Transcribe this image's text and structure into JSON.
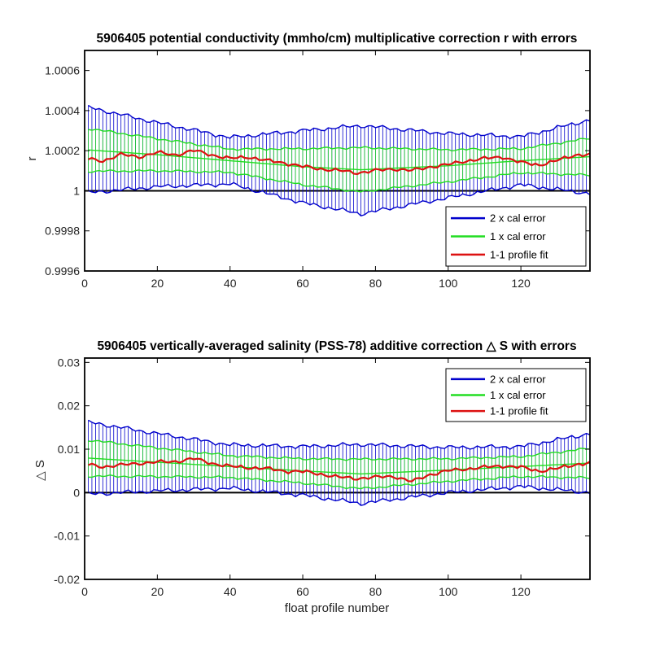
{
  "chart_data": [
    {
      "type": "line",
      "title": "5906405 potential conductivity (mmho/cm) multiplicative correction r with errors",
      "xlabel": "",
      "ylabel": "r",
      "xlim": [
        0,
        139
      ],
      "ylim": [
        0.9996,
        1.0007
      ],
      "xticks": [
        0,
        20,
        40,
        60,
        80,
        100,
        120
      ],
      "xtick_labels": [
        "0",
        "20",
        "40",
        "60",
        "80",
        "100",
        "120"
      ],
      "yticks": [
        0.9996,
        0.9998,
        1.0,
        1.0002,
        1.0004,
        1.0006
      ],
      "ytick_labels": [
        "0.9996",
        "0.9998",
        "1",
        "1.0002",
        "1.0004",
        "1.0006"
      ],
      "reference_line": 1.0,
      "legend_position": "lower-right",
      "center": {
        "x": [
          0,
          20,
          40,
          60,
          76,
          100,
          120,
          139
        ],
        "y": [
          1.000205,
          1.00018,
          1.00015,
          1.00012,
          1.000105,
          1.000125,
          1.00015,
          1.00017
        ]
      },
      "error_1x": {
        "x": [
          0,
          20,
          40,
          60,
          76,
          100,
          120,
          139
        ],
        "y": [
          0.000108,
          8e-05,
          5.8e-05,
          9e-05,
          0.00011,
          8e-05,
          6e-05,
          9.2e-05
        ]
      },
      "series": [
        {
          "name": "2 x cal error",
          "color": "#0000cc"
        },
        {
          "name": "1 x cal error",
          "color": "#22dd22"
        },
        {
          "name": "1-1 profile fit",
          "color": "#dd1111",
          "x": [
            0,
            5,
            10,
            15,
            20,
            25,
            30,
            35,
            40,
            45,
            50,
            55,
            60,
            65,
            70,
            75,
            80,
            85,
            90,
            95,
            100,
            105,
            110,
            115,
            120,
            125,
            130,
            135,
            139
          ],
          "y": [
            1.00016,
            1.00015,
            1.00018,
            1.00017,
            1.00019,
            1.00018,
            1.0002,
            1.00018,
            1.00016,
            1.00017,
            1.00015,
            1.00014,
            1.00012,
            1.00011,
            1.0001,
            1.00009,
            1.0001,
            1.00011,
            1.0001,
            1.00012,
            1.00013,
            1.00015,
            1.00016,
            1.00017,
            1.00014,
            1.00013,
            1.00015,
            1.00018,
            1.00018
          ]
        }
      ]
    },
    {
      "type": "line",
      "title": "5906405 vertically-averaged salinity (PSS-78) additive correction △ S with errors",
      "xlabel": "float profile number",
      "ylabel": "△ S",
      "xlim": [
        0,
        139
      ],
      "ylim": [
        -0.02,
        0.031
      ],
      "xticks": [
        0,
        20,
        40,
        60,
        80,
        100,
        120
      ],
      "xtick_labels": [
        "0",
        "20",
        "40",
        "60",
        "80",
        "100",
        "120"
      ],
      "yticks": [
        -0.02,
        -0.01,
        0,
        0.01,
        0.02,
        0.03
      ],
      "ytick_labels": [
        "-0.02",
        "-0.01",
        "0",
        "0.01",
        "0.02",
        "0.03"
      ],
      "reference_line": 0,
      "legend_position": "top-right",
      "center": {
        "x": [
          0,
          20,
          40,
          60,
          76,
          100,
          120,
          139
        ],
        "y": [
          0.008,
          0.007,
          0.006,
          0.005,
          0.0043,
          0.0052,
          0.006,
          0.0068
        ]
      },
      "error_1x": {
        "x": [
          0,
          20,
          40,
          60,
          76,
          100,
          120,
          139
        ],
        "y": [
          0.0042,
          0.0033,
          0.0025,
          0.0028,
          0.0034,
          0.0026,
          0.0023,
          0.0034
        ]
      },
      "series": [
        {
          "name": "2 x cal error",
          "color": "#0000cc"
        },
        {
          "name": "1 x cal error",
          "color": "#22dd22"
        },
        {
          "name": "1-1 profile fit",
          "color": "#dd1111",
          "x": [
            0,
            5,
            10,
            15,
            20,
            25,
            30,
            35,
            40,
            45,
            50,
            55,
            60,
            65,
            70,
            75,
            80,
            85,
            90,
            95,
            100,
            105,
            110,
            115,
            120,
            125,
            130,
            135,
            139
          ],
          "y": [
            0.0065,
            0.006,
            0.0063,
            0.0068,
            0.007,
            0.0072,
            0.0078,
            0.0068,
            0.006,
            0.0058,
            0.0055,
            0.005,
            0.0048,
            0.0043,
            0.0035,
            0.0033,
            0.0035,
            0.0038,
            0.0025,
            0.0042,
            0.005,
            0.0055,
            0.0058,
            0.0062,
            0.0058,
            0.005,
            0.0055,
            0.0065,
            0.0068
          ]
        }
      ]
    }
  ]
}
